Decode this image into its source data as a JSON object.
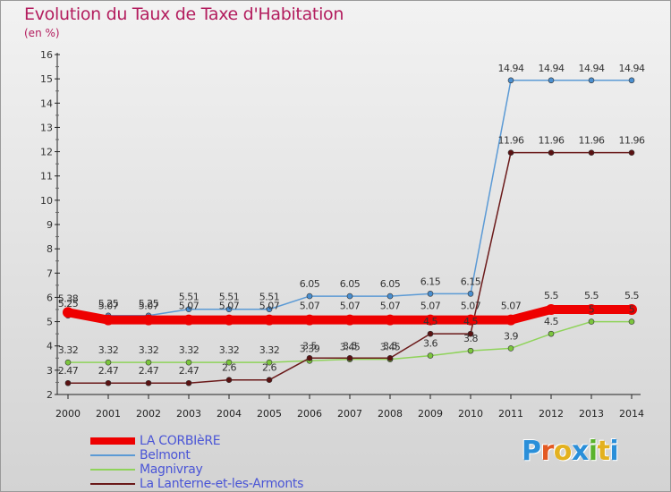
{
  "header": {
    "title": "Evolution du Taux de Taxe d'Habitation",
    "subtitle": "(en %)"
  },
  "logo": {
    "text": "Proxiti",
    "colors": [
      "#2a8fd9",
      "#e35a23",
      "#e3b11f",
      "#2a8fd9",
      "#5bb32d",
      "#e3b11f",
      "#2a8fd9"
    ]
  },
  "chart_data": {
    "type": "line",
    "x": [
      "2000",
      "2001",
      "2002",
      "2003",
      "2004",
      "2005",
      "2006",
      "2007",
      "2008",
      "2009",
      "2010",
      "2011",
      "2012",
      "2013",
      "2014"
    ],
    "ylim": [
      2,
      16
    ],
    "yticks": [
      2,
      3,
      4,
      5,
      6,
      7,
      8,
      9,
      10,
      11,
      12,
      13,
      14,
      15,
      16
    ],
    "grid": false,
    "legend_position": "bottom-left",
    "series": [
      {
        "name": "LA CORBIèRE",
        "color": "#ee0000",
        "values": [
          5.38,
          5.07,
          5.07,
          5.07,
          5.07,
          5.07,
          5.07,
          5.07,
          5.07,
          5.07,
          5.07,
          5.07,
          5.5,
          5.5,
          5.5
        ],
        "labels": [
          "5.38",
          "5.07",
          "5.07",
          "5.07",
          "5.07",
          "5.07",
          "5.07",
          "5.07",
          "5.07",
          "5.07",
          "5.07",
          "5.07",
          "5.5",
          "5.5",
          "5.5"
        ]
      },
      {
        "name": "Belmont",
        "color": "#5b9ad5",
        "values": [
          5.25,
          5.25,
          5.25,
          5.51,
          5.51,
          5.51,
          6.05,
          6.05,
          6.05,
          6.15,
          6.15,
          14.94,
          14.94,
          14.94,
          14.94
        ],
        "labels": [
          "5.25",
          "5.25",
          "5.25",
          "5.51",
          "5.51",
          "5.51",
          "6.05",
          "6.05",
          "6.05",
          "6.15",
          "6.15",
          "14.94",
          "14.94",
          "14.94",
          "14.94"
        ]
      },
      {
        "name": "Magnivray",
        "color": "#8fd35a",
        "values": [
          3.32,
          3.32,
          3.32,
          3.32,
          3.32,
          3.32,
          3.39,
          3.45,
          3.45,
          3.6,
          3.8,
          3.9,
          4.5,
          5,
          5
        ],
        "labels": [
          "3.32",
          "3.32",
          "3.32",
          "3.32",
          "3.32",
          "3.32",
          "3.39",
          "3.45",
          "3.45",
          "3.6",
          "3.8",
          "3.9",
          "4.5",
          "5",
          "5"
        ]
      },
      {
        "name": "La Lanterne-et-les-Armonts",
        "color": "#6b1a1a",
        "values": [
          2.47,
          2.47,
          2.47,
          2.47,
          2.6,
          2.6,
          3.5,
          3.5,
          3.5,
          4.5,
          4.5,
          11.96,
          11.96,
          11.96,
          11.96
        ],
        "labels": [
          "2.47",
          "2.47",
          "2.47",
          "2.47",
          "2.6",
          "2.6",
          "3.5",
          "3.5",
          "3.5",
          "4.5",
          "4.5",
          "11.96",
          "11.96",
          "11.96",
          "11.96"
        ]
      }
    ]
  }
}
